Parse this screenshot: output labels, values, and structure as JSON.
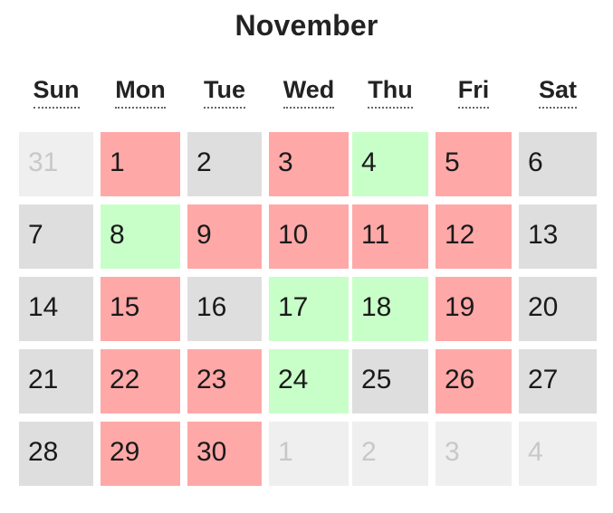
{
  "calendar": {
    "month_title": "November",
    "weekdays": [
      "Sun",
      "Mon",
      "Tue",
      "Wed",
      "Thu",
      "Fri",
      "Sat"
    ],
    "colors": {
      "booked": "#ffa8a8",
      "available": "#c8ffc8",
      "neutral": "#dedede",
      "other_month": "#efefef"
    },
    "weeks": [
      [
        {
          "day": "31",
          "status": "other"
        },
        {
          "day": "1",
          "status": "red"
        },
        {
          "day": "2",
          "status": "gray"
        },
        {
          "day": "3",
          "status": "red"
        },
        {
          "day": "4",
          "status": "green"
        },
        {
          "day": "5",
          "status": "red"
        },
        {
          "day": "6",
          "status": "gray"
        }
      ],
      [
        {
          "day": "7",
          "status": "gray"
        },
        {
          "day": "8",
          "status": "green"
        },
        {
          "day": "9",
          "status": "red"
        },
        {
          "day": "10",
          "status": "red"
        },
        {
          "day": "11",
          "status": "red"
        },
        {
          "day": "12",
          "status": "red"
        },
        {
          "day": "13",
          "status": "gray"
        }
      ],
      [
        {
          "day": "14",
          "status": "gray"
        },
        {
          "day": "15",
          "status": "red"
        },
        {
          "day": "16",
          "status": "gray"
        },
        {
          "day": "17",
          "status": "green"
        },
        {
          "day": "18",
          "status": "green"
        },
        {
          "day": "19",
          "status": "red"
        },
        {
          "day": "20",
          "status": "gray"
        }
      ],
      [
        {
          "day": "21",
          "status": "gray"
        },
        {
          "day": "22",
          "status": "red"
        },
        {
          "day": "23",
          "status": "red"
        },
        {
          "day": "24",
          "status": "green"
        },
        {
          "day": "25",
          "status": "gray"
        },
        {
          "day": "26",
          "status": "red"
        },
        {
          "day": "27",
          "status": "gray"
        }
      ],
      [
        {
          "day": "28",
          "status": "gray"
        },
        {
          "day": "29",
          "status": "red"
        },
        {
          "day": "30",
          "status": "red"
        },
        {
          "day": "1",
          "status": "other"
        },
        {
          "day": "2",
          "status": "other"
        },
        {
          "day": "3",
          "status": "other"
        },
        {
          "day": "4",
          "status": "other"
        }
      ]
    ]
  }
}
